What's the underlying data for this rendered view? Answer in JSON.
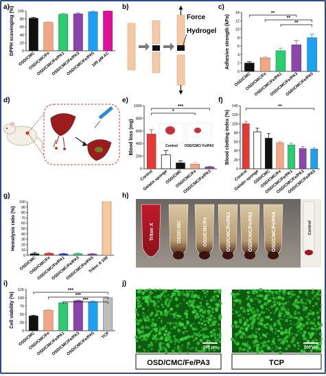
{
  "panels": {
    "a": {
      "label": "a)"
    },
    "b": {
      "label": "b)",
      "force_label": "Force",
      "hydrogel_label": "Hydrogel"
    },
    "c": {
      "label": "c)"
    },
    "d": {
      "label": "d)"
    },
    "e": {
      "label": "e)",
      "photo_labels": [
        "Control",
        "OSD/CMC/ Fe/PA3"
      ]
    },
    "f": {
      "label": "f)"
    },
    "g": {
      "label": "g)"
    },
    "h": {
      "label": "h)",
      "tube_labels": [
        "Triton X",
        "OSD/CMC",
        "OSD/CMC/Fe",
        "OSD/CMC/Fe/PA1",
        "OSD/CMC/Fe/PA3",
        "OSD/CMC/Fe/PA5",
        "Control"
      ]
    },
    "i": {
      "label": "i)"
    },
    "j": {
      "label": "j)",
      "images": [
        {
          "caption": "OSD/CMC/Fe/PA3",
          "scale_bar": "200 μm"
        },
        {
          "caption": "TCP",
          "scale_bar": "200 μm"
        }
      ]
    }
  },
  "chart_data": [
    {
      "panel": "a",
      "type": "bar",
      "categories": [
        "OSD/CMC",
        "OSD/CMC/Fe",
        "OSD/CMC/Fe/PA1",
        "OSD/CMC/Fe/PA3",
        "OSD/CMC/Fe/PA5",
        "100 μM AC"
      ],
      "values": [
        82,
        71,
        92,
        93,
        98,
        100
      ],
      "errors": [
        2,
        2,
        2,
        2,
        3,
        2
      ],
      "colors": [
        "#111111",
        "#f4a582",
        "#2ecc71",
        "#8e44ad",
        "#1da1f2",
        "#e0109a"
      ],
      "ylabel": "DPPH scavenging (%)",
      "ylim": [
        0,
        100
      ],
      "yticks": [
        0,
        20,
        40,
        60,
        80,
        100
      ]
    },
    {
      "panel": "c",
      "type": "bar",
      "categories": [
        "OSD/CMC",
        "OSD/CMC/Fe",
        "OSD/CMC/Fe/PA1",
        "OSD/CMC/Fe/PA3",
        "OSD/CMC/Fe/PA5"
      ],
      "values": [
        2.0,
        3.2,
        4.9,
        6.3,
        8.0
      ],
      "errors": [
        0.3,
        0.3,
        0.6,
        1.0,
        0.8
      ],
      "colors": [
        "#111111",
        "#f4a582",
        "#2ecc71",
        "#8e44ad",
        "#1da1f2"
      ],
      "ylabel": "Adhesive strength (kPa)",
      "ylim": [
        0,
        14
      ],
      "yticks": [
        0,
        2,
        4,
        6,
        8,
        10,
        12,
        14
      ],
      "significance": [
        "**",
        "**",
        "**"
      ]
    },
    {
      "panel": "e",
      "type": "bar",
      "categories": [
        "Control",
        "Gelatin sponge",
        "OSD/CMC",
        "OSD/CMC/Fe",
        "OSD/CMC/Fe/PA3"
      ],
      "values": [
        550,
        220,
        95,
        75,
        30
      ],
      "errors": [
        70,
        70,
        30,
        25,
        10
      ],
      "colors": [
        "#e53935",
        "#ffffff",
        "#111111",
        "#f4a582",
        "#8e44ad"
      ],
      "ylabel": "Blood loss (mg)",
      "ylim": [
        0,
        1000
      ],
      "yticks": [
        0,
        200,
        400,
        600,
        800,
        1000
      ],
      "significance": [
        "***",
        "*"
      ]
    },
    {
      "panel": "f",
      "type": "bar",
      "categories": [
        "Control",
        "Gelatin sponge",
        "OSD/CMC",
        "OSD/CMC/Fe",
        "OSD/CMC/Fe/PA1",
        "OSD/CMC/Fe/PA3",
        "OSD/CMC/Fe/PA5"
      ],
      "values": [
        100,
        82,
        68,
        58,
        53,
        45,
        44
      ],
      "errors": [
        5,
        8,
        10,
        4,
        4,
        4,
        3
      ],
      "colors": [
        "#e53935",
        "#ffffff",
        "#111111",
        "#f4a582",
        "#2ecc71",
        "#8e44ad",
        "#1da1f2"
      ],
      "ylabel": "Blood clotting index (%)",
      "ylim": [
        0,
        140
      ],
      "yticks": [
        0,
        20,
        40,
        60,
        80,
        100,
        120,
        140
      ],
      "significance": [
        "**"
      ]
    },
    {
      "panel": "g",
      "type": "bar",
      "categories": [
        "OSD/CMC",
        "OSD/CMC/Fe",
        "OSD/CMC/Fe/PA1",
        "OSD/CMC/Fe/PA3",
        "OSD/CMC/Fe/PA5",
        "Triton X-100"
      ],
      "values": [
        3.0,
        3.5,
        2.5,
        2.8,
        2.2,
        100
      ],
      "errors": [
        2.0,
        1.5,
        1.0,
        1.2,
        0.8,
        5
      ],
      "colors": [
        "#111111",
        "#e53935",
        "#1e3fd0",
        "#2ecc71",
        "#8e44ad",
        "#f9c89b"
      ],
      "ylabel": "Hemolysis ratio (%)",
      "ylim": [
        0,
        100
      ],
      "yticks": [
        0,
        10,
        20,
        30,
        40,
        50,
        60,
        70,
        80,
        90,
        100
      ]
    },
    {
      "panel": "i",
      "type": "bar",
      "categories": [
        "OSD/CMC",
        "OSD/CMC/Fe",
        "OSD/CMC/Fe/PA1",
        "OSD/CMC/Fe/PA3",
        "OSD/CMC/Fe/PA5",
        "TCP"
      ],
      "values": [
        45,
        62,
        85,
        91,
        88,
        100
      ],
      "errors": [
        2,
        3,
        3,
        2,
        3,
        2
      ],
      "colors": [
        "#111111",
        "#f4a582",
        "#2ecc71",
        "#8e44ad",
        "#1da1f2",
        "#bdbdbd"
      ],
      "ylabel": "Cell viability (%)",
      "ylim": [
        0,
        125
      ],
      "yticks": [
        0,
        25,
        50,
        75,
        100,
        125
      ],
      "significance": [
        "***",
        "***",
        "***"
      ]
    }
  ]
}
